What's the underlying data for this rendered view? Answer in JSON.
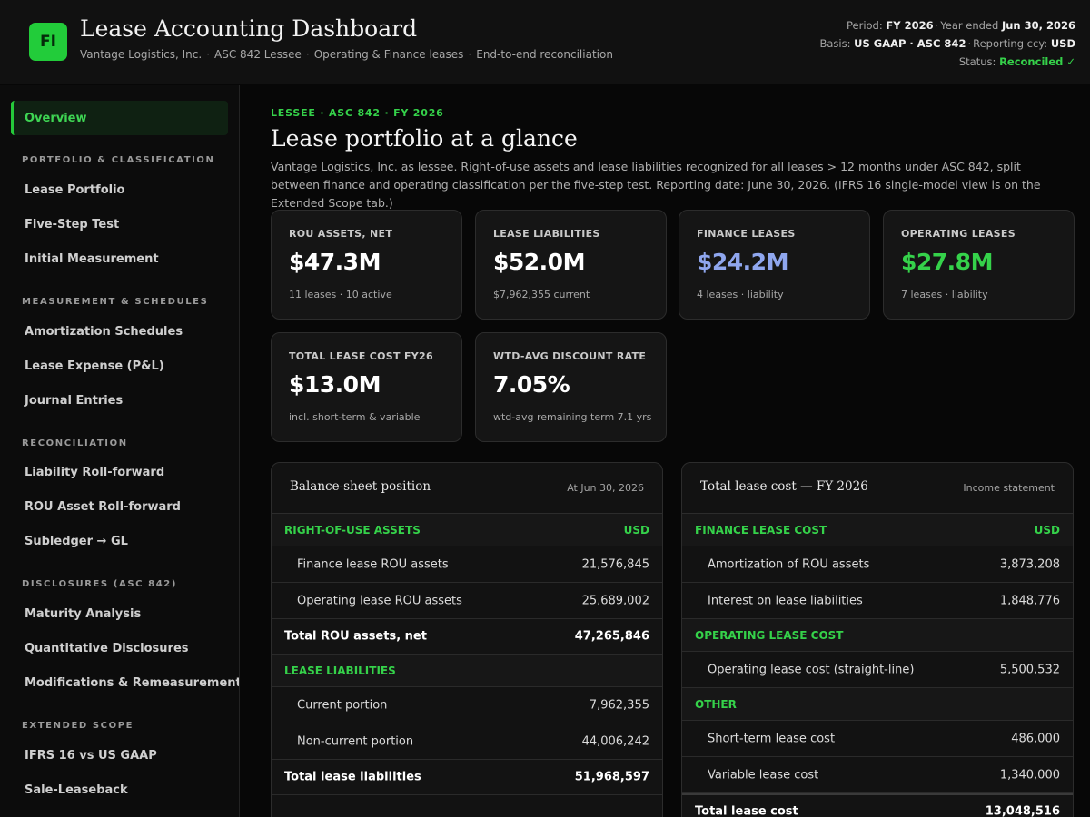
{
  "header": {
    "logo_text": "FI",
    "title": "Lease Accounting Dashboard",
    "subtitle": [
      "Vantage Logistics, Inc.",
      "ASC 842 Lessee",
      "Operating & Finance leases",
      "End-to-end reconciliation"
    ],
    "period_label": "Period:",
    "period_value": "FY 2026",
    "year_label": "Year ended",
    "year_value": "Jun 30, 2026",
    "basis_label": "Basis:",
    "basis_value": "US GAAP · ASC 842",
    "ccy_label": "Reporting ccy:",
    "ccy_value": "USD",
    "status_label": "Status:",
    "status_value": "Reconciled ✓"
  },
  "sidebar": {
    "active": "Overview",
    "groups": [
      {
        "label": "PORTFOLIO & CLASSIFICATION",
        "items": [
          "Lease Portfolio",
          "Five-Step Test",
          "Initial Measurement"
        ]
      },
      {
        "label": "MEASUREMENT & SCHEDULES",
        "items": [
          "Amortization Schedules",
          "Lease Expense (P&L)",
          "Journal Entries"
        ]
      },
      {
        "label": "RECONCILIATION",
        "items": [
          "Liability Roll-forward",
          "ROU Asset Roll-forward",
          "Subledger → GL"
        ]
      },
      {
        "label": "DISCLOSURES (ASC 842)",
        "items": [
          "Maturity Analysis",
          "Quantitative Disclosures",
          "Modifications & Remeasurement"
        ]
      },
      {
        "label": "EXTENDED SCOPE",
        "items": [
          "IFRS 16 vs US GAAP",
          "Sale-Leaseback"
        ]
      }
    ]
  },
  "main": {
    "eyebrow": "LESSEE · ASC 842 · FY 2026",
    "title": "Lease portfolio at a glance",
    "description": "Vantage Logistics, Inc. as lessee. Right-of-use assets and lease liabilities recognized for all leases > 12 months under ASC 842, split between finance and operating classification per the five-step test. Reporting date: June 30, 2026. (IFRS 16 single-model view is on the Extended Scope tab.)",
    "kpis": [
      {
        "label": "ROU ASSETS, NET",
        "value": "$47.3M",
        "sub": "11 leases · 10 active",
        "color": "#ffffff"
      },
      {
        "label": "LEASE LIABILITIES",
        "value": "$52.0M",
        "sub": "$7,962,355 current",
        "color": "#ffffff"
      },
      {
        "label": "FINANCE LEASES",
        "value": "$24.2M",
        "sub": "4 leases · liability",
        "color": "#8fa6ee"
      },
      {
        "label": "OPERATING LEASES",
        "value": "$27.8M",
        "sub": "7 leases · liability",
        "color": "#35d24a"
      },
      {
        "label": "TOTAL LEASE COST FY26",
        "value": "$13.0M",
        "sub": "incl. short-term & variable",
        "color": "#ffffff"
      },
      {
        "label": "WTD-AVG DISCOUNT RATE",
        "value": "7.05%",
        "sub": "wtd-avg remaining term 7.1 yrs",
        "color": "#ffffff"
      }
    ],
    "balance_sheet": {
      "title": "Balance-sheet position",
      "note": "At Jun 30, 2026",
      "rows": [
        {
          "type": "section",
          "label": "RIGHT-OF-USE ASSETS",
          "value": "USD"
        },
        {
          "type": "item",
          "label": "Finance lease ROU assets",
          "value": "21,576,845"
        },
        {
          "type": "item",
          "label": "Operating lease ROU assets",
          "value": "25,689,002"
        },
        {
          "type": "total",
          "label": "Total ROU assets, net",
          "value": "47,265,846"
        },
        {
          "type": "section",
          "label": "LEASE LIABILITIES",
          "value": ""
        },
        {
          "type": "item",
          "label": "Current portion",
          "value": "7,962,355"
        },
        {
          "type": "item",
          "label": "Non-current portion",
          "value": "44,006,242"
        },
        {
          "type": "total",
          "label": "Total lease liabilities",
          "value": "51,968,597"
        }
      ]
    },
    "lease_cost": {
      "title": "Total lease cost — FY 2026",
      "note": "Income statement",
      "rows": [
        {
          "type": "section",
          "label": "FINANCE LEASE COST",
          "value": "USD"
        },
        {
          "type": "item",
          "label": "Amortization of ROU assets",
          "value": "3,873,208"
        },
        {
          "type": "item",
          "label": "Interest on lease liabilities",
          "value": "1,848,776"
        },
        {
          "type": "section",
          "label": "OPERATING LEASE COST",
          "value": ""
        },
        {
          "type": "item",
          "label": "Operating lease cost (straight-line)",
          "value": "5,500,532"
        },
        {
          "type": "section",
          "label": "OTHER",
          "value": ""
        },
        {
          "type": "item",
          "label": "Short-term lease cost",
          "value": "486,000"
        },
        {
          "type": "item",
          "label": "Variable lease cost",
          "value": "1,340,000"
        },
        {
          "type": "total-top",
          "label": "Total lease cost",
          "value": "13,048,516"
        }
      ]
    }
  }
}
